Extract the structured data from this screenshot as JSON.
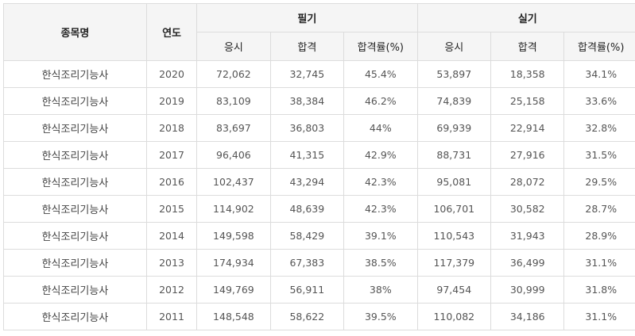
{
  "header": {
    "item": "종목명",
    "year": "연도",
    "written_group": "필기",
    "practical_group": "실기",
    "sub": {
      "applicants": "응시",
      "passed": "합격",
      "rate": "합격률(%)"
    }
  },
  "rows": [
    {
      "item": "한식조리기능사",
      "year": "2020",
      "w_app": "72,062",
      "w_pass": "32,745",
      "w_rate": "45.4%",
      "p_app": "53,897",
      "p_pass": "18,358",
      "p_rate": "34.1%"
    },
    {
      "item": "한식조리기능사",
      "year": "2019",
      "w_app": "83,109",
      "w_pass": "38,384",
      "w_rate": "46.2%",
      "p_app": "74,839",
      "p_pass": "25,158",
      "p_rate": "33.6%"
    },
    {
      "item": "한식조리기능사",
      "year": "2018",
      "w_app": "83,697",
      "w_pass": "36,803",
      "w_rate": "44%",
      "p_app": "69,939",
      "p_pass": "22,914",
      "p_rate": "32.8%"
    },
    {
      "item": "한식조리기능사",
      "year": "2017",
      "w_app": "96,406",
      "w_pass": "41,315",
      "w_rate": "42.9%",
      "p_app": "88,731",
      "p_pass": "27,916",
      "p_rate": "31.5%"
    },
    {
      "item": "한식조리기능사",
      "year": "2016",
      "w_app": "102,437",
      "w_pass": "43,294",
      "w_rate": "42.3%",
      "p_app": "95,081",
      "p_pass": "28,072",
      "p_rate": "29.5%"
    },
    {
      "item": "한식조리기능사",
      "year": "2015",
      "w_app": "114,902",
      "w_pass": "48,639",
      "w_rate": "42.3%",
      "p_app": "106,701",
      "p_pass": "30,582",
      "p_rate": "28.7%"
    },
    {
      "item": "한식조리기능사",
      "year": "2014",
      "w_app": "149,598",
      "w_pass": "58,429",
      "w_rate": "39.1%",
      "p_app": "110,543",
      "p_pass": "31,943",
      "p_rate": "28.9%"
    },
    {
      "item": "한식조리기능사",
      "year": "2013",
      "w_app": "174,934",
      "w_pass": "67,383",
      "w_rate": "38.5%",
      "p_app": "117,379",
      "p_pass": "36,499",
      "p_rate": "31.1%"
    },
    {
      "item": "한식조리기능사",
      "year": "2012",
      "w_app": "149,769",
      "w_pass": "56,911",
      "w_rate": "38%",
      "p_app": "97,454",
      "p_pass": "30,999",
      "p_rate": "31.8%"
    },
    {
      "item": "한식조리기능사",
      "year": "2011",
      "w_app": "148,548",
      "w_pass": "58,622",
      "w_rate": "39.5%",
      "p_app": "110,082",
      "p_pass": "34,186",
      "p_rate": "31.1%"
    }
  ]
}
